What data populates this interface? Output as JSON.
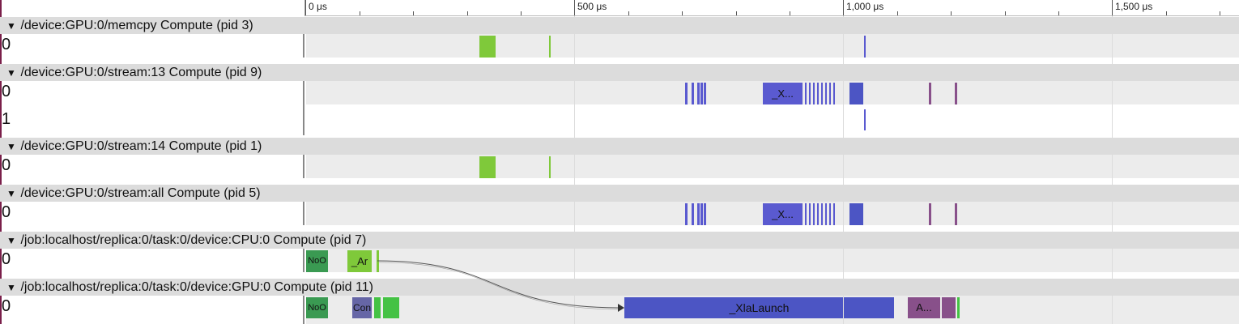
{
  "colors": {
    "green": "#7fc93a",
    "bright_green": "#44c244",
    "dark_green": "#3a9a52",
    "blue": "#5a5ad0",
    "royal_blue": "#4c55c4",
    "mauve": "#88508a",
    "slate_purple": "#6666a6"
  },
  "ruler": {
    "labels": [
      "0 μs",
      "500 μs",
      "1,000 μs",
      "1,500 μs"
    ]
  },
  "processes": [
    {
      "title": "/device:GPU:0/memcpy Compute (pid 3)",
      "expand_icon": "triangle-down-icon",
      "threads": [
        "0"
      ]
    },
    {
      "title": "/device:GPU:0/stream:13 Compute (pid 9)",
      "expand_icon": "triangle-down-icon",
      "threads": [
        "0",
        "1"
      ]
    },
    {
      "title": "/device:GPU:0/stream:14 Compute (pid 1)",
      "expand_icon": "triangle-down-icon",
      "threads": [
        "0"
      ]
    },
    {
      "title": "/device:GPU:0/stream:all Compute (pid 5)",
      "expand_icon": "triangle-down-icon",
      "threads": [
        "0"
      ]
    },
    {
      "title": "/job:localhost/replica:0/task:0/device:CPU:0 Compute (pid 7)",
      "expand_icon": "triangle-down-icon",
      "threads": [
        "0"
      ]
    },
    {
      "title": "/job:localhost/replica:0/task:0/device:GPU:0 Compute (pid 11)",
      "expand_icon": "triangle-down-icon",
      "threads": [
        "0"
      ]
    }
  ],
  "slice_labels": {
    "stream13_x": "_X...",
    "streamall_x": "_X...",
    "cpu_noop": "NoO",
    "cpu_ar": "_Ar",
    "gpu_noop": "NoO",
    "gpu_con": "Con",
    "gpu_xla": "_XlaLaunch",
    "gpu_a": "A..."
  }
}
